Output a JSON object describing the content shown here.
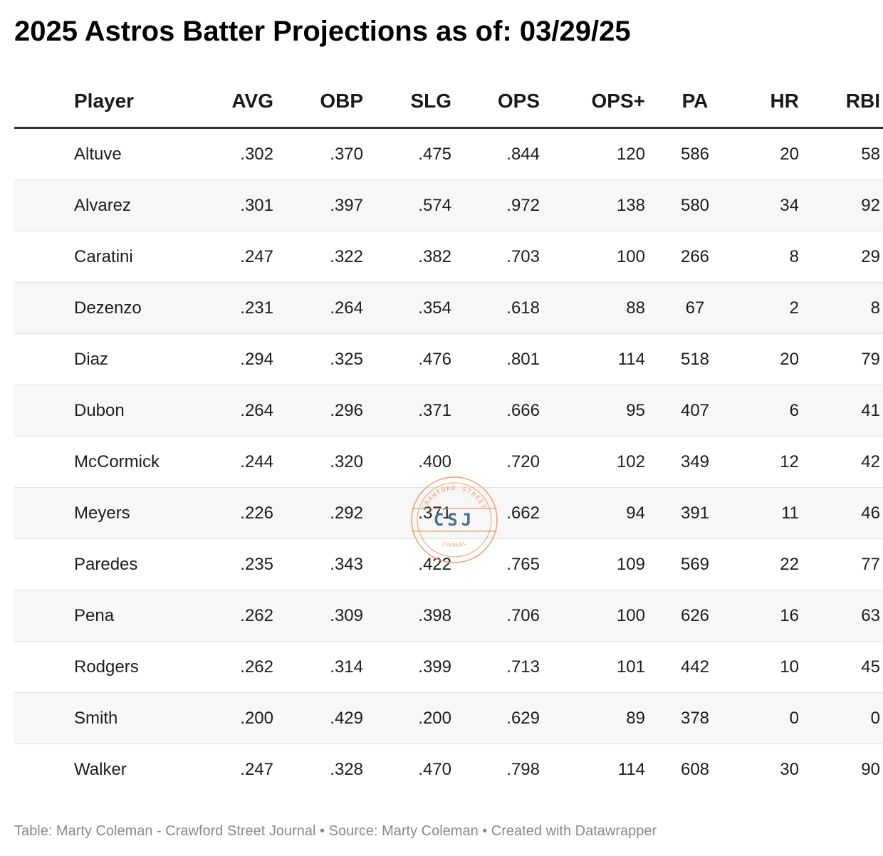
{
  "title": "2025 Astros Batter Projections as of: 03/29/25",
  "chart_data": {
    "type": "table",
    "columns": [
      "Player",
      "AVG",
      "OBP",
      "SLG",
      "OPS",
      "OPS+",
      "PA",
      "HR",
      "RBI"
    ],
    "rows": [
      [
        "Altuve",
        ".302",
        ".370",
        ".475",
        ".844",
        "120",
        "586",
        "20",
        "58"
      ],
      [
        "Alvarez",
        ".301",
        ".397",
        ".574",
        ".972",
        "138",
        "580",
        "34",
        "92"
      ],
      [
        "Caratini",
        ".247",
        ".322",
        ".382",
        ".703",
        "100",
        "266",
        "8",
        "29"
      ],
      [
        "Dezenzo",
        ".231",
        ".264",
        ".354",
        ".618",
        "88",
        "67",
        "2",
        "8"
      ],
      [
        "Diaz",
        ".294",
        ".325",
        ".476",
        ".801",
        "114",
        "518",
        "20",
        "79"
      ],
      [
        "Dubon",
        ".264",
        ".296",
        ".371",
        ".666",
        "95",
        "407",
        "6",
        "41"
      ],
      [
        "McCormick",
        ".244",
        ".320",
        ".400",
        ".720",
        "102",
        "349",
        "12",
        "42"
      ],
      [
        "Meyers",
        ".226",
        ".292",
        ".371",
        ".662",
        "94",
        "391",
        "11",
        "46"
      ],
      [
        "Paredes",
        ".235",
        ".343",
        ".422",
        ".765",
        "109",
        "569",
        "22",
        "77"
      ],
      [
        "Pena",
        ".262",
        ".309",
        ".398",
        ".706",
        "100",
        "626",
        "16",
        "63"
      ],
      [
        "Rodgers",
        ".262",
        ".314",
        ".399",
        ".713",
        "101",
        "442",
        "10",
        "45"
      ],
      [
        "Smith",
        ".200",
        ".429",
        ".200",
        ".629",
        "89",
        "378",
        "0",
        "0"
      ],
      [
        "Walker",
        ".247",
        ".328",
        ".470",
        ".798",
        "114",
        "608",
        "30",
        "90"
      ]
    ]
  },
  "footer": "Table: Marty Coleman - Crawford Street Journal • Source: Marty Coleman • Created with Datawrapper",
  "watermark": {
    "ring_text_top": "CRAWFORD STREET",
    "center_text": "CSJ",
    "ring_text_bottom": "JOURNAL",
    "ring_color": "#f0a070",
    "center_color": "#4a6f96"
  }
}
